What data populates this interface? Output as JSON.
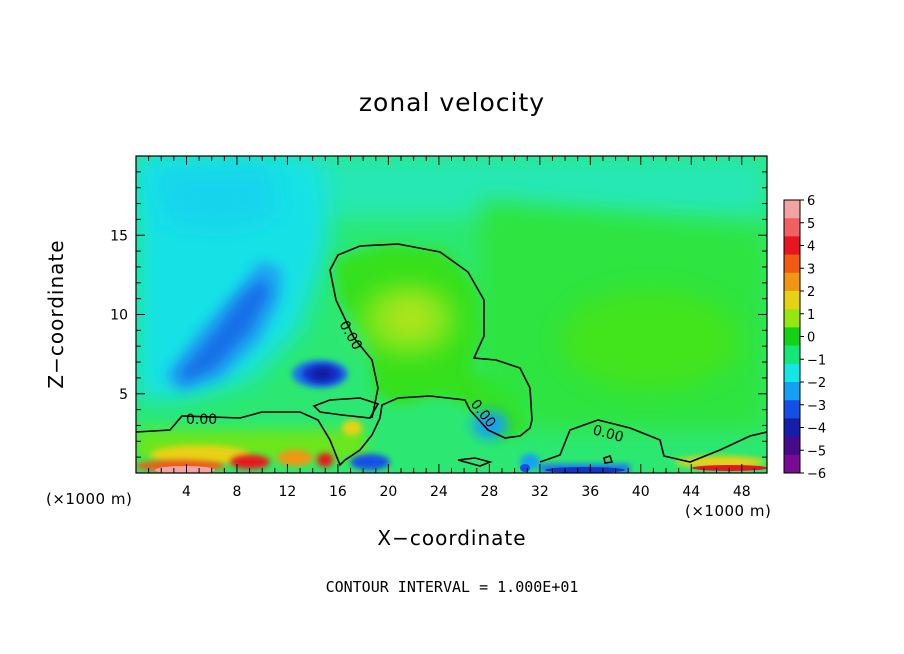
{
  "chart_data": {
    "type": "heatmap",
    "title": "zonal velocity",
    "xlabel": "X−coordinate",
    "ylabel": "Z−coordinate",
    "x_unit": "(×1000 m)",
    "xlim": [
      0,
      50
    ],
    "ylim": [
      0,
      20
    ],
    "x_ticks": [
      4,
      8,
      12,
      16,
      20,
      24,
      28,
      32,
      36,
      40,
      44,
      48
    ],
    "y_ticks": [
      5,
      10,
      15
    ],
    "colorbar": {
      "levels": [
        6,
        5,
        4,
        3,
        2,
        1,
        0,
        -1,
        -2,
        -3,
        -4,
        -5,
        -6
      ],
      "labels": [
        "6",
        "5",
        "4",
        "3",
        "2",
        "1",
        "0",
        "−1",
        "−2",
        "−3",
        "−4",
        "−5",
        "−6"
      ],
      "colors": [
        "#f2a3a3",
        "#f06060",
        "#e8141e",
        "#f05a14",
        "#f09614",
        "#e6d214",
        "#96e614",
        "#14d214",
        "#14e678",
        "#14e6e6",
        "#14a0f0",
        "#1450e6",
        "#141eaa",
        "#460a8c",
        "#780a96"
      ]
    },
    "contour_label": "0.00",
    "contour_interval_text": "CONTOUR INTERVAL = 1.000E+01",
    "features": [
      {
        "x": 4.2,
        "z": 7.0,
        "value": -3.0
      },
      {
        "x": 14.6,
        "z": 6.2,
        "value": -4.5
      },
      {
        "x": 21.5,
        "z": 10.0,
        "value": 1.5
      },
      {
        "x": 6.0,
        "z": 0.3,
        "value": 4.5
      },
      {
        "x": 13.0,
        "z": 0.4,
        "value": 3.5
      },
      {
        "x": 34.0,
        "z": 0.3,
        "value": -3.5
      }
    ]
  }
}
